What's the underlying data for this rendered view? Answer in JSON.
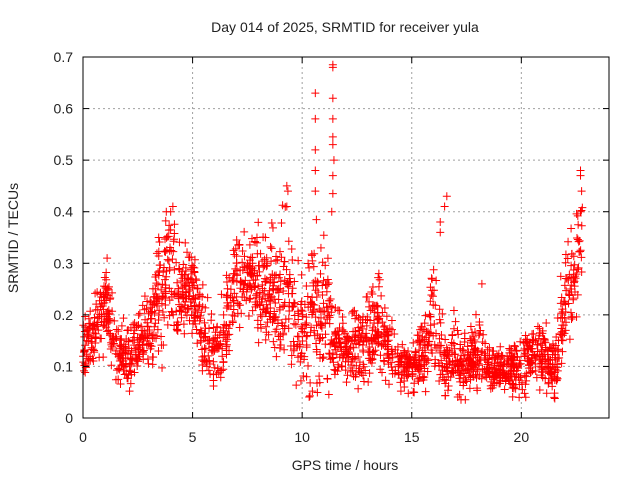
{
  "chart_data": {
    "type": "scatter",
    "title": "Day 014 of 2025, SRMTID for receiver yula",
    "xlabel": "GPS time / hours",
    "ylabel": "SRMTID / TECUs",
    "xlim": [
      0,
      24
    ],
    "ylim": [
      0,
      0.7
    ],
    "xticks": [
      0,
      5,
      10,
      15,
      20
    ],
    "yticks": [
      0,
      0.1,
      0.2,
      0.3,
      0.4,
      0.5,
      0.6,
      0.7
    ],
    "ytick_labels": [
      "0",
      "0.1",
      "0.2",
      "0.3",
      "0.4",
      "0.5",
      "0.6",
      "0.7"
    ],
    "grid": true,
    "marker": "plus",
    "color": "#ff0000",
    "data_range_hours": [
      0,
      22.8
    ],
    "envelope": {
      "description": "approximate typical value (center) and spread of the dense scatter vs time",
      "hours": [
        0.0,
        0.5,
        1.0,
        1.5,
        2.0,
        2.5,
        3.0,
        3.5,
        4.0,
        4.5,
        5.0,
        5.5,
        6.0,
        6.5,
        7.0,
        7.5,
        8.0,
        8.5,
        9.0,
        9.5,
        10.0,
        10.5,
        11.0,
        11.5,
        12.0,
        12.5,
        13.0,
        13.5,
        14.0,
        14.5,
        15.0,
        15.5,
        16.0,
        16.5,
        17.0,
        17.5,
        18.0,
        18.5,
        19.0,
        19.5,
        20.0,
        20.5,
        21.0,
        21.5,
        22.0,
        22.5,
        22.8
      ],
      "center": [
        0.15,
        0.16,
        0.22,
        0.13,
        0.12,
        0.14,
        0.15,
        0.24,
        0.27,
        0.24,
        0.25,
        0.16,
        0.13,
        0.17,
        0.27,
        0.27,
        0.26,
        0.24,
        0.25,
        0.2,
        0.16,
        0.22,
        0.2,
        0.14,
        0.13,
        0.15,
        0.16,
        0.19,
        0.13,
        0.11,
        0.09,
        0.13,
        0.2,
        0.1,
        0.12,
        0.1,
        0.13,
        0.1,
        0.09,
        0.1,
        0.1,
        0.13,
        0.12,
        0.09,
        0.22,
        0.27,
        0.36
      ],
      "spread": [
        0.04,
        0.04,
        0.05,
        0.03,
        0.04,
        0.04,
        0.05,
        0.07,
        0.08,
        0.06,
        0.06,
        0.05,
        0.04,
        0.06,
        0.06,
        0.05,
        0.06,
        0.07,
        0.09,
        0.08,
        0.08,
        0.1,
        0.09,
        0.05,
        0.04,
        0.05,
        0.05,
        0.06,
        0.04,
        0.03,
        0.03,
        0.05,
        0.08,
        0.04,
        0.04,
        0.04,
        0.05,
        0.03,
        0.03,
        0.03,
        0.04,
        0.04,
        0.04,
        0.04,
        0.07,
        0.07,
        0.08
      ]
    },
    "outliers": [
      {
        "x": 10.6,
        "y": 0.63
      },
      {
        "x": 10.6,
        "y": 0.58
      },
      {
        "x": 10.6,
        "y": 0.52
      },
      {
        "x": 10.6,
        "y": 0.48
      },
      {
        "x": 10.6,
        "y": 0.44
      },
      {
        "x": 11.4,
        "y": 0.685
      },
      {
        "x": 11.4,
        "y": 0.68
      },
      {
        "x": 11.4,
        "y": 0.62
      },
      {
        "x": 11.4,
        "y": 0.58
      },
      {
        "x": 11.4,
        "y": 0.545
      },
      {
        "x": 11.4,
        "y": 0.53
      },
      {
        "x": 11.45,
        "y": 0.5
      },
      {
        "x": 11.4,
        "y": 0.47
      },
      {
        "x": 11.4,
        "y": 0.435
      },
      {
        "x": 11.35,
        "y": 0.4
      },
      {
        "x": 9.3,
        "y": 0.45
      },
      {
        "x": 9.35,
        "y": 0.44
      },
      {
        "x": 9.3,
        "y": 0.41
      },
      {
        "x": 4.1,
        "y": 0.41
      },
      {
        "x": 4.0,
        "y": 0.4
      },
      {
        "x": 3.8,
        "y": 0.4
      },
      {
        "x": 16.3,
        "y": 0.38
      },
      {
        "x": 16.3,
        "y": 0.36
      },
      {
        "x": 16.6,
        "y": 0.43
      },
      {
        "x": 16.5,
        "y": 0.41
      },
      {
        "x": 22.7,
        "y": 0.48
      },
      {
        "x": 22.7,
        "y": 0.47
      },
      {
        "x": 22.75,
        "y": 0.44
      },
      {
        "x": 22.7,
        "y": 0.4
      },
      {
        "x": 1.1,
        "y": 0.31
      },
      {
        "x": 13.5,
        "y": 0.28
      },
      {
        "x": 18.2,
        "y": 0.26
      },
      {
        "x": 19.9,
        "y": 0.04
      },
      {
        "x": 21.5,
        "y": 0.04
      },
      {
        "x": 15.1,
        "y": 0.05
      },
      {
        "x": 10.2,
        "y": 0.08
      }
    ]
  }
}
